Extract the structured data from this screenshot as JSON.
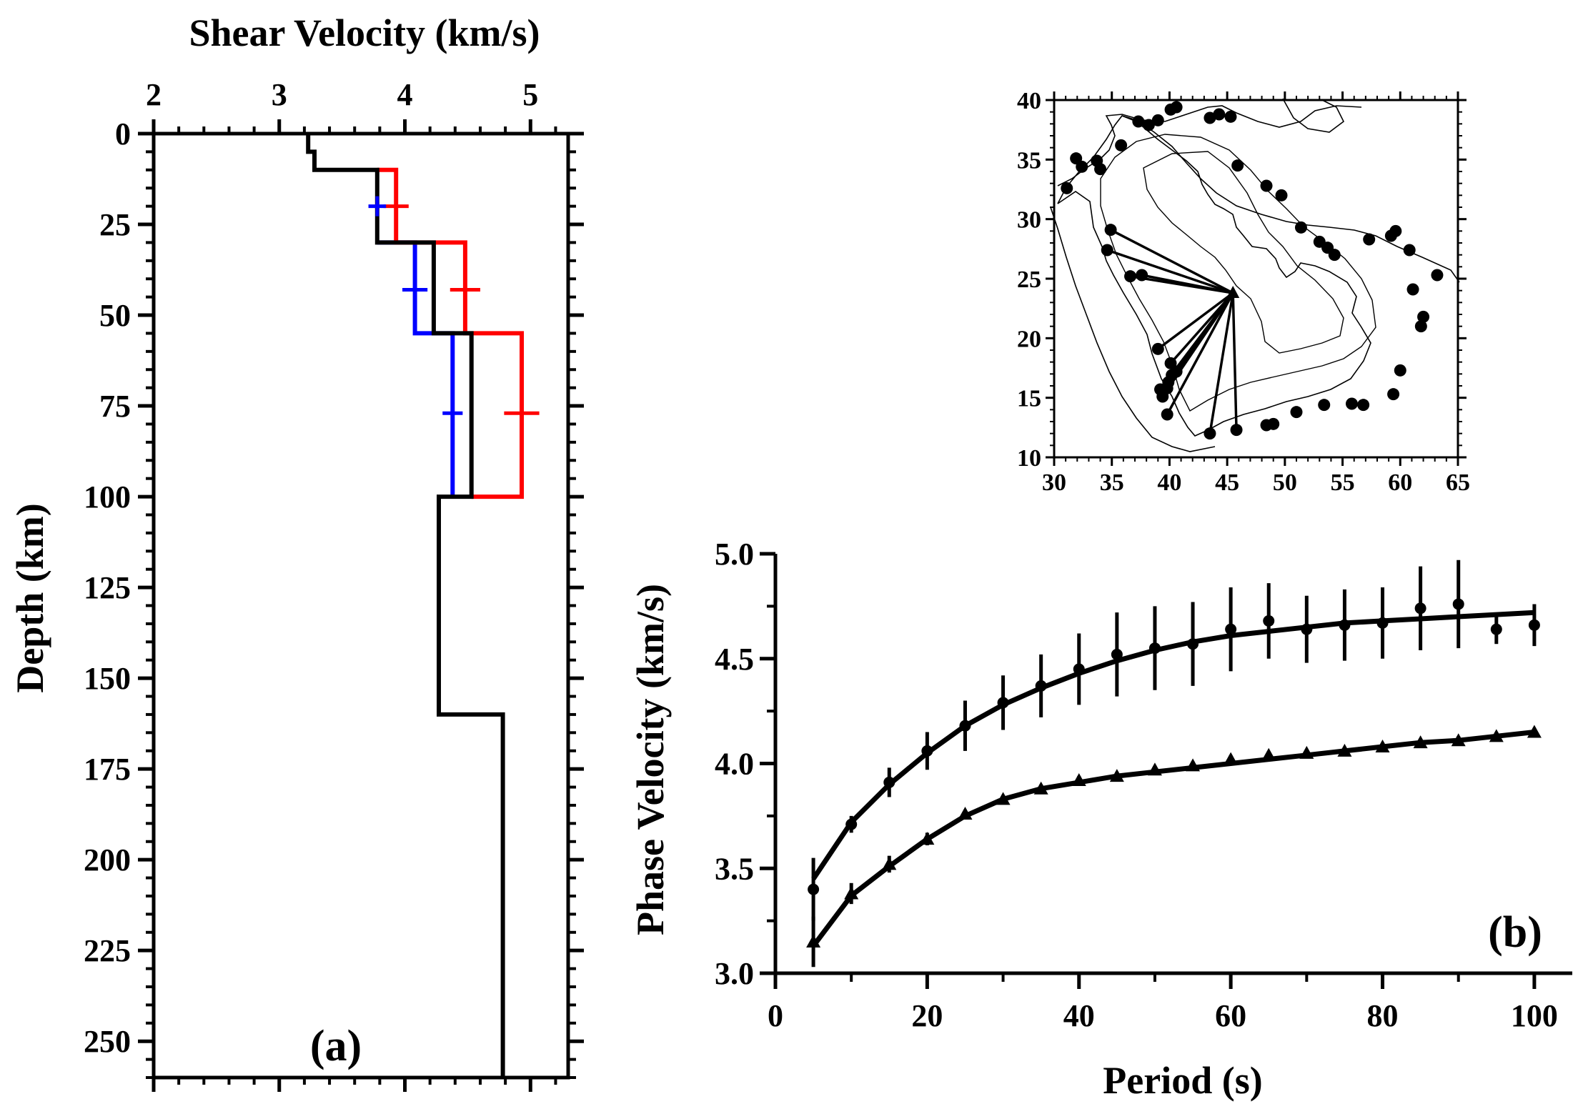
{
  "chart_data": [
    {
      "type": "line",
      "panel": "(a)",
      "xlabel": "Shear Velocity (km/s)",
      "ylabel": "Depth (km)",
      "xlim": [
        2,
        5.3
      ],
      "ylim": [
        0,
        260
      ],
      "x_ticks": [
        "2",
        "3",
        "4",
        "5"
      ],
      "y_ticks": [
        "0",
        "25",
        "50",
        "75",
        "100",
        "125",
        "150",
        "175",
        "200",
        "225",
        "250"
      ],
      "x_axis_position": "top",
      "y_axis_inverted": true,
      "grid": false,
      "series": [
        {
          "color": "#000000",
          "steps": [
            [
              3.23,
              0
            ],
            [
              3.23,
              5
            ],
            [
              3.28,
              5
            ],
            [
              3.28,
              10
            ],
            [
              3.78,
              10
            ],
            [
              3.78,
              30
            ],
            [
              4.23,
              30
            ],
            [
              4.23,
              55
            ],
            [
              4.53,
              55
            ],
            [
              4.53,
              100
            ],
            [
              4.27,
              100
            ],
            [
              4.27,
              160
            ],
            [
              4.78,
              160
            ],
            [
              4.78,
              260
            ]
          ]
        },
        {
          "color": "#ff0000",
          "steps": [
            [
              3.78,
              10
            ],
            [
              3.93,
              10
            ],
            [
              3.93,
              30
            ],
            [
              4.48,
              30
            ],
            [
              4.48,
              55
            ],
            [
              4.93,
              55
            ],
            [
              4.93,
              100
            ],
            [
              4.53,
              100
            ]
          ]
        },
        {
          "color": "#0000ff",
          "steps": [
            [
              3.78,
              30
            ],
            [
              4.08,
              30
            ],
            [
              4.08,
              55
            ],
            [
              4.38,
              55
            ],
            [
              4.38,
              100
            ]
          ]
        }
      ],
      "error_marks": [
        {
          "color": "#ff0000",
          "x": 3.93,
          "y": 20,
          "half_width": 0.1
        },
        {
          "color": "#0000ff",
          "x": 3.78,
          "y": 20,
          "half_width": 0.07
        },
        {
          "color": "#ff0000",
          "x": 4.48,
          "y": 43,
          "half_width": 0.12
        },
        {
          "color": "#0000ff",
          "x": 4.08,
          "y": 43,
          "half_width": 0.1
        },
        {
          "color": "#ff0000",
          "x": 4.93,
          "y": 77,
          "half_width": 0.14
        },
        {
          "color": "#0000ff",
          "x": 4.38,
          "y": 77,
          "half_width": 0.08
        }
      ]
    },
    {
      "type": "scatter",
      "panel": "(b)",
      "xlabel": "Period (s)",
      "ylabel": "Phase Velocity (km/s)",
      "xlim": [
        0,
        105
      ],
      "ylim": [
        3.0,
        5.0
      ],
      "x_ticks": [
        "0",
        "20",
        "40",
        "60",
        "80",
        "100"
      ],
      "y_ticks": [
        "3.0",
        "3.5",
        "4.0",
        "4.5",
        "5.0"
      ],
      "grid": false,
      "x": [
        5,
        10,
        15,
        20,
        25,
        30,
        35,
        40,
        45,
        50,
        55,
        60,
        65,
        70,
        75,
        80,
        85,
        90,
        95,
        100
      ],
      "series": [
        {
          "marker": "circle",
          "values": [
            3.4,
            3.71,
            3.91,
            4.06,
            4.18,
            4.29,
            4.37,
            4.45,
            4.52,
            4.55,
            4.57,
            4.64,
            4.68,
            4.64,
            4.66,
            4.67,
            4.74,
            4.76,
            4.64,
            4.66
          ],
          "errors": [
            0.15,
            0.04,
            0.07,
            0.09,
            0.12,
            0.13,
            0.15,
            0.17,
            0.2,
            0.2,
            0.2,
            0.2,
            0.18,
            0.16,
            0.17,
            0.17,
            0.2,
            0.21,
            0.07,
            0.1
          ],
          "fit": [
            3.45,
            3.72,
            3.9,
            4.05,
            4.18,
            4.28,
            4.36,
            4.43,
            4.49,
            4.54,
            4.58,
            4.61,
            4.63,
            4.65,
            4.67,
            4.68,
            4.69,
            4.7,
            4.71,
            4.72
          ]
        },
        {
          "marker": "triangle",
          "values": [
            3.15,
            3.38,
            3.52,
            3.64,
            3.76,
            3.83,
            3.88,
            3.92,
            3.94,
            3.97,
            3.99,
            4.02,
            4.04,
            4.05,
            4.06,
            4.08,
            4.1,
            4.11,
            4.13,
            4.15
          ],
          "errors": [
            0.12,
            0.05,
            0.04,
            0.03,
            0.02,
            0.02,
            0.02,
            0.02,
            0.02,
            0.02,
            0.02,
            0.02,
            0.01,
            0.01,
            0.01,
            0.01,
            0.01,
            0.02,
            0.02,
            0.02
          ],
          "fit": [
            3.13,
            3.37,
            3.51,
            3.64,
            3.75,
            3.83,
            3.88,
            3.91,
            3.94,
            3.96,
            3.98,
            4.0,
            4.02,
            4.04,
            4.06,
            4.08,
            4.1,
            4.11,
            4.13,
            4.15
          ]
        }
      ]
    },
    {
      "type": "map",
      "xlim": [
        30,
        65
      ],
      "ylim": [
        10,
        40
      ],
      "x_ticks": [
        "30",
        "35",
        "40",
        "45",
        "50",
        "55",
        "60",
        "65"
      ],
      "y_ticks": [
        "10",
        "15",
        "20",
        "25",
        "30",
        "35",
        "40"
      ],
      "station": {
        "lon": 45.5,
        "lat": 23.8,
        "marker": "triangle"
      },
      "events": [
        [
          31.1,
          32.6
        ],
        [
          31.9,
          35.1
        ],
        [
          32.4,
          34.4
        ],
        [
          33.7,
          34.9
        ],
        [
          34.0,
          34.2
        ],
        [
          35.8,
          36.2
        ],
        [
          37.3,
          38.2
        ],
        [
          38.2,
          37.9
        ],
        [
          39.0,
          38.3
        ],
        [
          40.1,
          39.2
        ],
        [
          40.6,
          39.4
        ],
        [
          43.5,
          38.5
        ],
        [
          44.3,
          38.8
        ],
        [
          45.3,
          38.6
        ],
        [
          45.9,
          34.5
        ],
        [
          48.4,
          32.8
        ],
        [
          49.7,
          32.0
        ],
        [
          51.4,
          29.3
        ],
        [
          53.0,
          28.1
        ],
        [
          53.7,
          27.6
        ],
        [
          54.3,
          27.0
        ],
        [
          57.3,
          28.3
        ],
        [
          59.2,
          28.6
        ],
        [
          59.6,
          29.0
        ],
        [
          60.8,
          27.4
        ],
        [
          63.2,
          25.3
        ],
        [
          61.1,
          24.1
        ],
        [
          62.0,
          21.8
        ],
        [
          61.8,
          21.0
        ],
        [
          60.0,
          17.3
        ],
        [
          59.4,
          15.3
        ],
        [
          56.8,
          14.4
        ],
        [
          55.8,
          14.5
        ],
        [
          53.4,
          14.4
        ],
        [
          51.0,
          13.8
        ],
        [
          49.0,
          12.8
        ],
        [
          48.4,
          12.7
        ],
        [
          45.8,
          12.3
        ],
        [
          43.5,
          12.0
        ],
        [
          39.8,
          13.6
        ],
        [
          39.4,
          15.1
        ],
        [
          39.2,
          15.7
        ],
        [
          39.8,
          15.8
        ],
        [
          39.9,
          16.3
        ],
        [
          40.2,
          16.9
        ],
        [
          40.6,
          17.2
        ],
        [
          40.1,
          17.9
        ],
        [
          39.0,
          19.1
        ],
        [
          36.6,
          25.2
        ],
        [
          37.6,
          25.3
        ],
        [
          34.6,
          27.4
        ],
        [
          34.9,
          29.1
        ]
      ],
      "paths_to": [
        [
          34.9,
          29.1
        ],
        [
          34.6,
          27.4
        ],
        [
          36.6,
          25.2
        ],
        [
          37.6,
          25.3
        ],
        [
          39.0,
          19.1
        ],
        [
          40.1,
          17.9
        ],
        [
          40.6,
          17.2
        ],
        [
          40.2,
          16.9
        ],
        [
          39.9,
          16.3
        ],
        [
          39.8,
          15.8
        ],
        [
          39.2,
          15.7
        ],
        [
          39.4,
          15.1
        ],
        [
          39.8,
          13.6
        ],
        [
          43.5,
          12.0
        ],
        [
          45.8,
          12.3
        ]
      ]
    }
  ]
}
